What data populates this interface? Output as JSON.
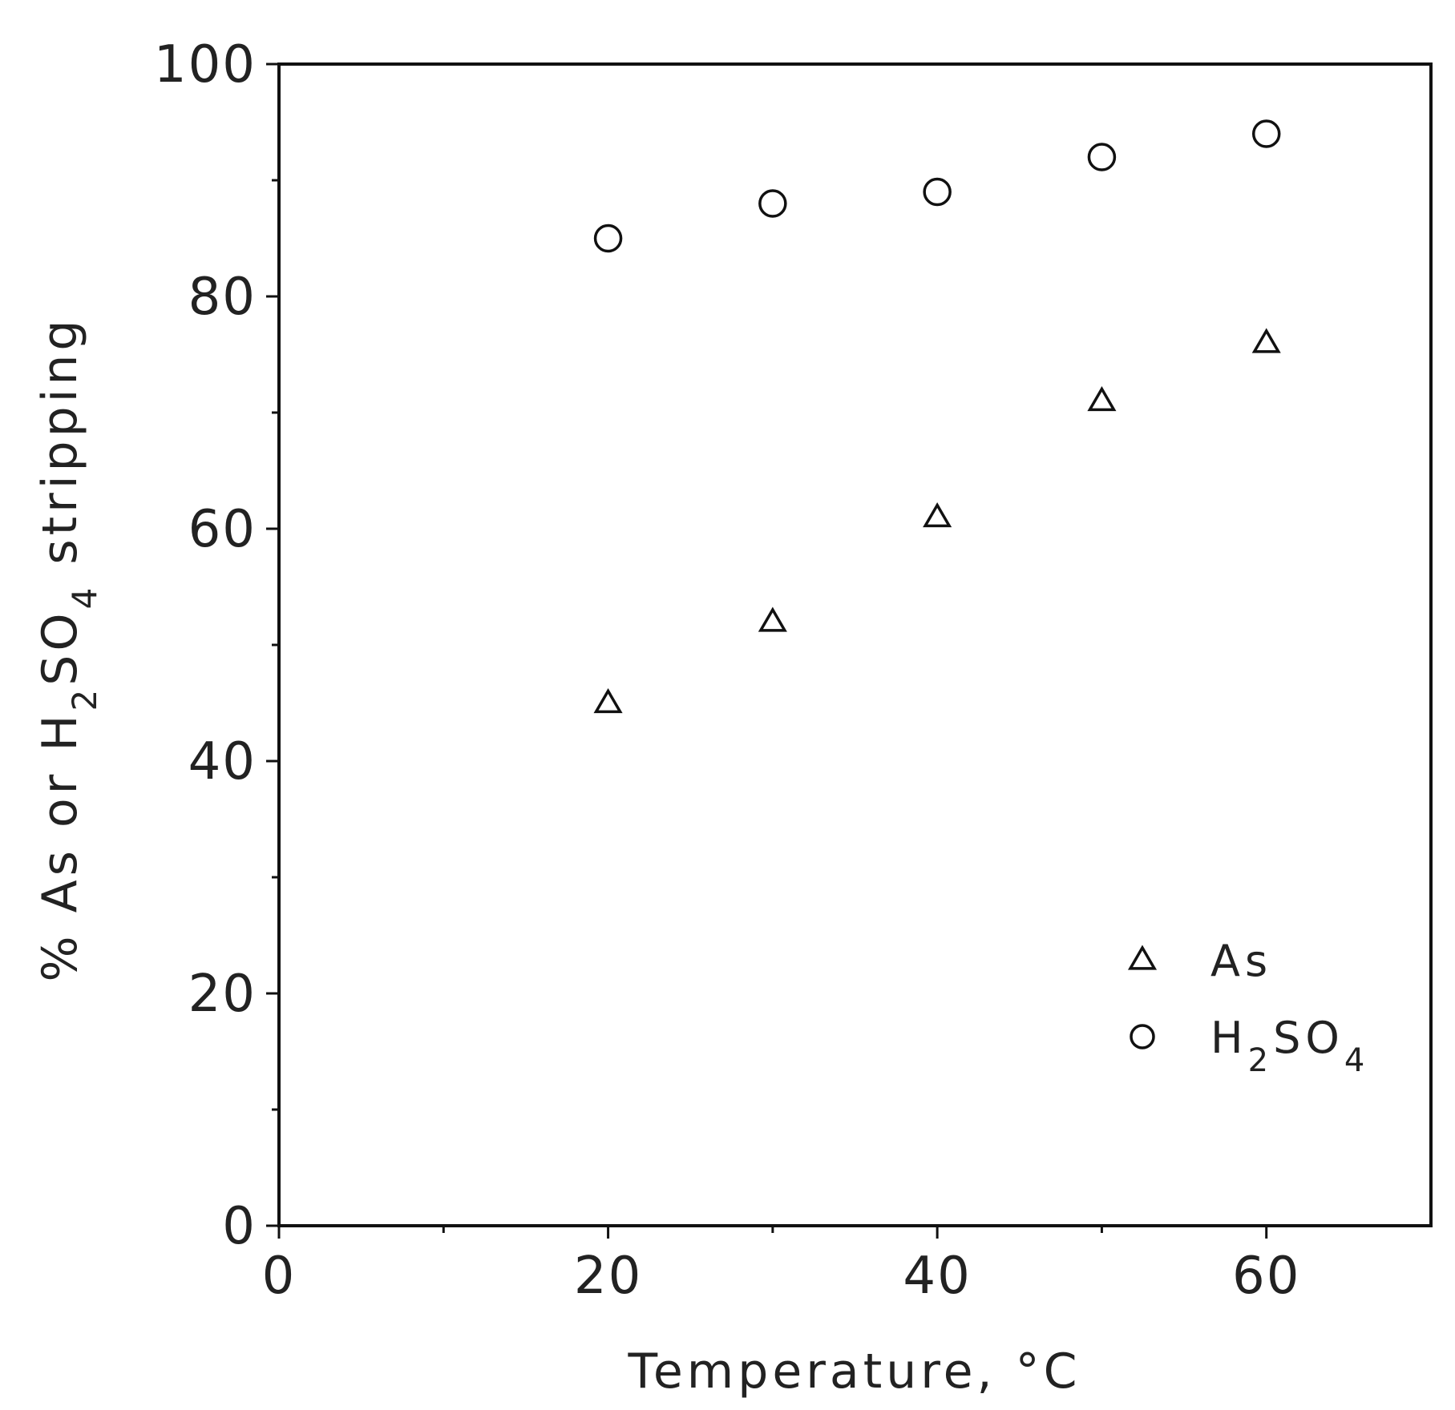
{
  "chart_data": {
    "type": "scatter",
    "xlabel": "Temperature, °C",
    "ylabel": "% As or H2SO4 stripping",
    "ylabel_parts": [
      "% As or H",
      "2",
      "SO",
      "4",
      " stripping"
    ],
    "xlim": [
      0,
      70
    ],
    "ylim": [
      0,
      100
    ],
    "x_ticks": [
      0,
      20,
      40,
      60
    ],
    "x_minor_ticks": [
      10,
      30,
      50
    ],
    "y_ticks": [
      0,
      20,
      40,
      60,
      80,
      100
    ],
    "y_minor_ticks": [
      10,
      30,
      50,
      70,
      90
    ],
    "grid": false,
    "legend_position": "lower-right",
    "series": [
      {
        "name": "As",
        "name_parts": [
          "As"
        ],
        "marker": "triangle",
        "x": [
          20,
          30,
          40,
          50,
          60
        ],
        "y": [
          45,
          52,
          61,
          71,
          76
        ]
      },
      {
        "name": "H2SO4",
        "name_parts": [
          "H",
          "2",
          "SO",
          "4"
        ],
        "marker": "circle",
        "x": [
          20,
          30,
          40,
          50,
          60
        ],
        "y": [
          85,
          88,
          89,
          92,
          94
        ]
      }
    ]
  }
}
